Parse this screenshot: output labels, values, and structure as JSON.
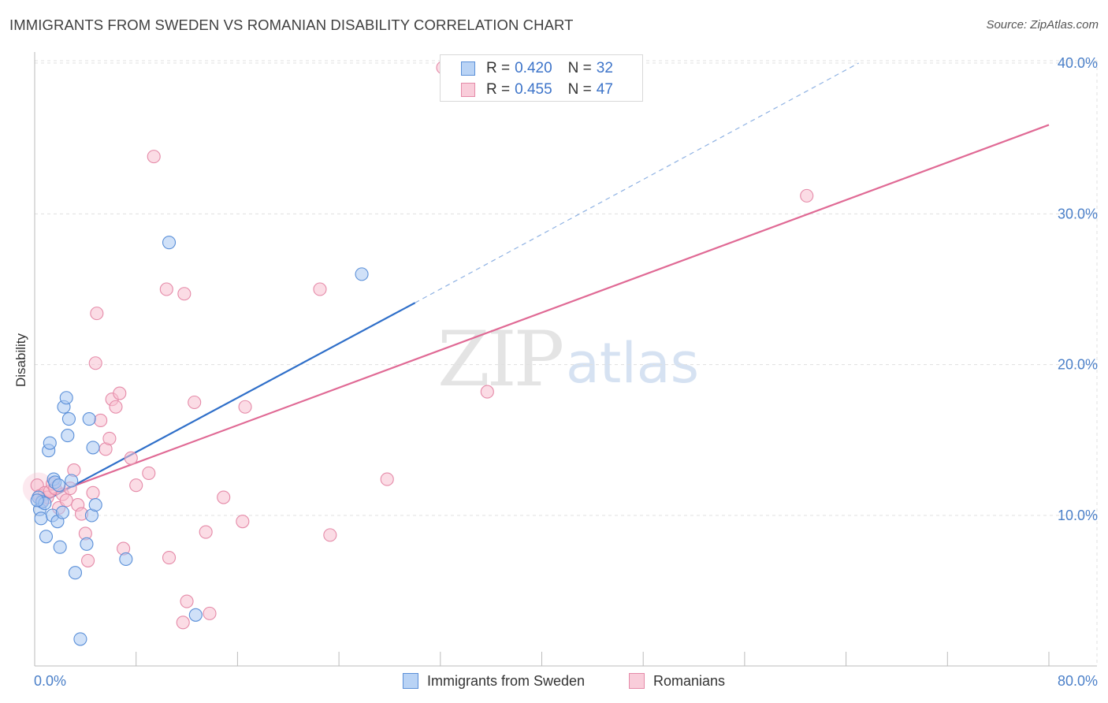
{
  "title": "IMMIGRANTS FROM SWEDEN VS ROMANIAN DISABILITY CORRELATION CHART",
  "source": "Source: ZipAtlas.com",
  "watermark": {
    "zip": "ZIP",
    "atlas": "atlas"
  },
  "legend": {
    "series1": {
      "r_label": "R =",
      "r_value": "0.420",
      "n_label": "N =",
      "n_value": "32"
    },
    "series2": {
      "r_label": "R =",
      "r_value": "0.455",
      "n_label": "N =",
      "n_value": "47"
    }
  },
  "bottom_legend": {
    "series1": "Immigrants from Sweden",
    "series2": "Romanians"
  },
  "colors": {
    "sweden_fill": "#a9c8f2",
    "sweden_stroke": "#5a8fd8",
    "sweden_line": "#2f6fc9",
    "romania_fill": "#f7bfd0",
    "romania_stroke": "#e58aa8",
    "romania_line": "#e06a95",
    "grid": "#e0e0e0",
    "axis_text": "#4a7fc8"
  },
  "chart_data": {
    "type": "scatter",
    "title": "IMMIGRANTS FROM SWEDEN VS ROMANIAN DISABILITY CORRELATION CHART",
    "xlabel": "",
    "ylabel": "Disability",
    "xlim": [
      0,
      80
    ],
    "ylim": [
      0,
      42
    ],
    "x_tick_labels": [
      "0.0%",
      "80.0%"
    ],
    "y_ticks": [
      10,
      20,
      30,
      40
    ],
    "y_tick_labels": [
      "10.0%",
      "20.0%",
      "30.0%",
      "40.0%"
    ],
    "series": [
      {
        "name": "Immigrants from Sweden",
        "points": [
          [
            0.3,
            11.2
          ],
          [
            0.4,
            10.4
          ],
          [
            0.5,
            9.8
          ],
          [
            0.6,
            10.9
          ],
          [
            0.8,
            10.8
          ],
          [
            0.9,
            8.6
          ],
          [
            1.1,
            14.3
          ],
          [
            1.2,
            14.8
          ],
          [
            1.4,
            10.0
          ],
          [
            1.5,
            12.4
          ],
          [
            1.6,
            12.2
          ],
          [
            1.8,
            9.6
          ],
          [
            1.9,
            12.0
          ],
          [
            2.0,
            7.9
          ],
          [
            2.2,
            10.2
          ],
          [
            2.3,
            17.2
          ],
          [
            2.5,
            17.8
          ],
          [
            2.6,
            15.3
          ],
          [
            2.7,
            16.4
          ],
          [
            2.9,
            12.3
          ],
          [
            3.2,
            6.2
          ],
          [
            3.6,
            1.8
          ],
          [
            4.1,
            8.1
          ],
          [
            4.3,
            16.4
          ],
          [
            4.5,
            10.0
          ],
          [
            4.6,
            14.5
          ],
          [
            4.8,
            10.7
          ],
          [
            7.2,
            7.1
          ],
          [
            10.6,
            28.1
          ],
          [
            12.7,
            3.4
          ],
          [
            25.8,
            26.0
          ],
          [
            0.2,
            11.0
          ]
        ],
        "trend": {
          "x0": 0,
          "y0": 10.6,
          "x1": 30,
          "y1": 24.1,
          "dashed_to": {
            "x": 65,
            "y": 40.0
          }
        }
      },
      {
        "name": "Romanians",
        "points": [
          [
            0.2,
            12.0
          ],
          [
            0.4,
            11.3
          ],
          [
            0.6,
            11.0
          ],
          [
            0.8,
            11.5
          ],
          [
            1.0,
            11.2
          ],
          [
            1.2,
            11.6
          ],
          [
            1.4,
            12.1
          ],
          [
            1.6,
            11.8
          ],
          [
            1.9,
            10.5
          ],
          [
            2.2,
            11.4
          ],
          [
            2.5,
            11.0
          ],
          [
            2.8,
            11.8
          ],
          [
            3.1,
            13.0
          ],
          [
            3.4,
            10.7
          ],
          [
            3.7,
            10.1
          ],
          [
            4.0,
            8.8
          ],
          [
            4.2,
            7.0
          ],
          [
            4.6,
            11.5
          ],
          [
            4.9,
            23.4
          ],
          [
            4.8,
            20.1
          ],
          [
            5.2,
            16.3
          ],
          [
            5.6,
            14.4
          ],
          [
            5.9,
            15.1
          ],
          [
            6.1,
            17.7
          ],
          [
            6.4,
            17.2
          ],
          [
            6.7,
            18.1
          ],
          [
            7.0,
            7.8
          ],
          [
            7.6,
            13.8
          ],
          [
            8.0,
            12.0
          ],
          [
            9.0,
            12.8
          ],
          [
            9.4,
            33.8
          ],
          [
            10.4,
            25.0
          ],
          [
            10.6,
            7.2
          ],
          [
            11.8,
            24.7
          ],
          [
            12.0,
            4.3
          ],
          [
            11.7,
            2.9
          ],
          [
            12.6,
            17.5
          ],
          [
            13.5,
            8.9
          ],
          [
            13.8,
            3.5
          ],
          [
            14.9,
            11.2
          ],
          [
            16.4,
            9.6
          ],
          [
            16.6,
            17.2
          ],
          [
            22.5,
            25.0
          ],
          [
            23.3,
            8.7
          ],
          [
            27.8,
            12.4
          ],
          [
            35.7,
            18.2
          ],
          [
            60.9,
            31.2
          ]
        ],
        "extra_points": [
          [
            32.2,
            39.7
          ]
        ],
        "trend": {
          "x0": 0,
          "y0": 11.0,
          "x1": 80,
          "y1": 35.9
        }
      }
    ]
  }
}
